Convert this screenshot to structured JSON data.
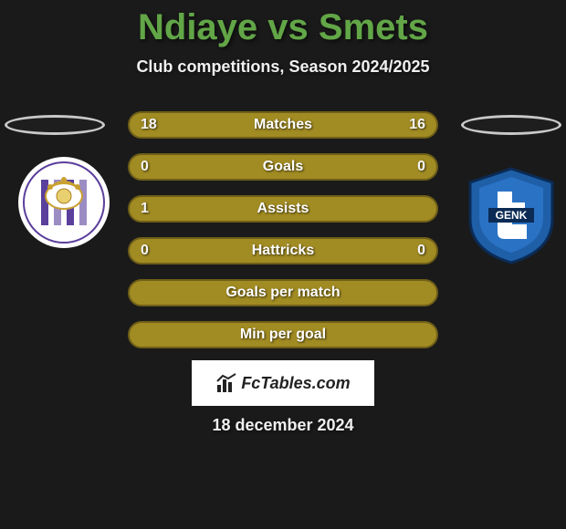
{
  "title_color": "#62a647",
  "title": {
    "player1": "Ndiaye",
    "vs": "vs",
    "player2": "Smets"
  },
  "subtitle": "Club competitions, Season 2024/2025",
  "stats": {
    "bar_bg": "#a18b23",
    "bar_border": "#6f5f18",
    "rows": [
      {
        "label": "Matches",
        "left": "18",
        "right": "16"
      },
      {
        "label": "Goals",
        "left": "0",
        "right": "0"
      },
      {
        "label": "Assists",
        "left": "1",
        "right": ""
      },
      {
        "label": "Hattricks",
        "left": "0",
        "right": "0"
      },
      {
        "label": "Goals per match",
        "left": "",
        "right": ""
      },
      {
        "label": "Min per goal",
        "left": "",
        "right": ""
      }
    ]
  },
  "brand": "FcTables.com",
  "date": "18 december 2024",
  "club_left": {
    "name": "anderlecht",
    "stripe": "#5a3f9c",
    "bg": "#ffffff"
  },
  "club_right": {
    "name": "genk",
    "primary": "#1f5fa8",
    "secondary": "#0b2b55",
    "text": "GENK"
  }
}
